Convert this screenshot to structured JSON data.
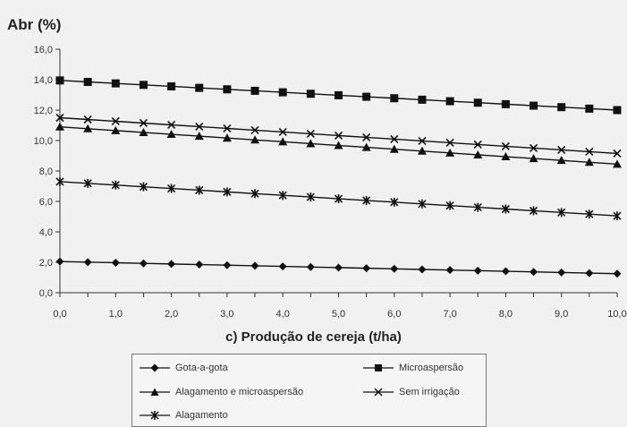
{
  "chart_data": {
    "type": "line",
    "ylabel": "Abr (%)",
    "xlabel": "c) Produção de cereja (t/ha)",
    "xlim": [
      0,
      10
    ],
    "ylim": [
      0,
      16
    ],
    "x_ticks": [
      "0,0",
      "1,0",
      "2,0",
      "3,0",
      "4,0",
      "5,0",
      "6,0",
      "7,0",
      "8,0",
      "9,0",
      "10,0"
    ],
    "y_ticks": [
      "0,0",
      "2,0",
      "4,0",
      "6,0",
      "8,0",
      "10,0",
      "12,0",
      "14,0",
      "16,0"
    ],
    "x": [
      0,
      0.5,
      1,
      1.5,
      2,
      2.5,
      3,
      3.5,
      4,
      4.5,
      5,
      5.5,
      6,
      6.5,
      7,
      7.5,
      8,
      8.5,
      9,
      9.5,
      10
    ],
    "series": [
      {
        "name": "Gota-a-gota",
        "marker": "diamond",
        "start": 2.05,
        "end": 1.25
      },
      {
        "name": "Microaspersão",
        "marker": "square",
        "start": 13.95,
        "end": 12.0
      },
      {
        "name": "Alagamento e microaspersão",
        "marker": "triangle",
        "start": 10.9,
        "end": 8.45
      },
      {
        "name": "Sem irrigação",
        "marker": "x",
        "start": 11.5,
        "end": 9.15
      },
      {
        "name": "Alagamento",
        "marker": "star",
        "start": 7.3,
        "end": 5.05
      }
    ],
    "legend_position": "bottom"
  }
}
